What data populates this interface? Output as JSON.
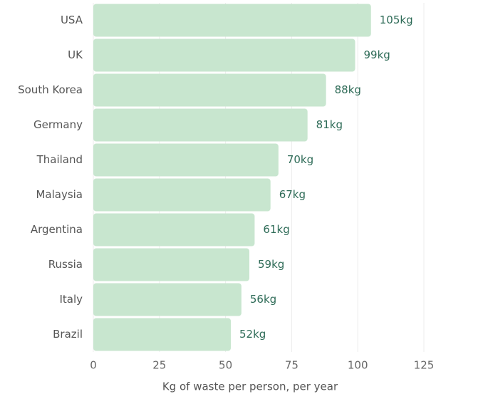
{
  "chart_data": {
    "type": "bar",
    "orientation": "horizontal",
    "categories": [
      "USA",
      "UK",
      "South Korea",
      "Germany",
      "Thailand",
      "Malaysia",
      "Argentina",
      "Russia",
      "Italy",
      "Brazil"
    ],
    "values": [
      105,
      99,
      88,
      81,
      70,
      67,
      61,
      59,
      56,
      52
    ],
    "value_labels": [
      "105kg",
      "99kg",
      "88kg",
      "81kg",
      "70kg",
      "67kg",
      "61kg",
      "59kg",
      "56kg",
      "52kg"
    ],
    "color": "#c8e6cf",
    "x_label": "Kg of waste per person, per year",
    "xlim": [
      0,
      125
    ],
    "xticks": [
      0,
      25,
      50,
      75,
      100,
      125
    ],
    "grid": true
  }
}
